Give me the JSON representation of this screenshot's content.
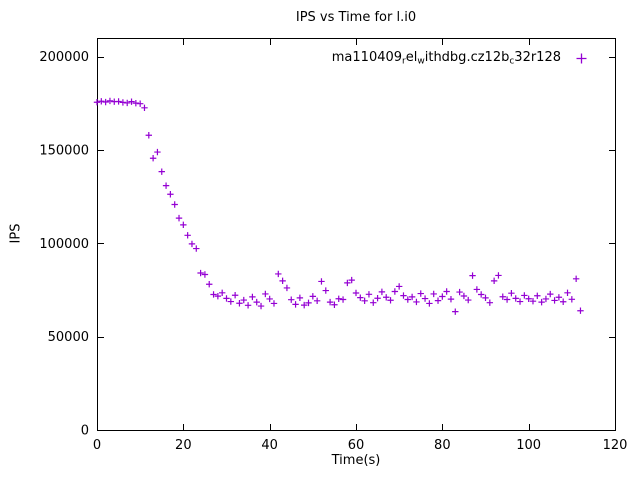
{
  "chart_data": {
    "type": "scatter",
    "title": "IPS vs Time for l.i0",
    "xlabel": "Time(s)",
    "ylabel": "IPS",
    "xlim": [
      0,
      120
    ],
    "ylim": [
      0,
      210000
    ],
    "xticks": [
      0,
      20,
      40,
      60,
      80,
      100,
      120
    ],
    "yticks": [
      0,
      50000,
      100000,
      150000,
      200000
    ],
    "grid": false,
    "legend_position": "top-right",
    "legend_label_plain": "ma110409_rel_withdbg.cz12b_c32r128",
    "legend_label_parts": [
      {
        "text": "ma110409",
        "sub": false
      },
      {
        "text": "r",
        "sub": true
      },
      {
        "text": "el",
        "sub": false
      },
      {
        "text": "w",
        "sub": true
      },
      {
        "text": "ithdbg.cz12b",
        "sub": false
      },
      {
        "text": "c",
        "sub": true
      },
      {
        "text": "32r128",
        "sub": false
      }
    ],
    "series": [
      {
        "name": "ma110409_rel_withdbg.cz12b_c32r128",
        "marker": "plus",
        "color": "#9400d3",
        "x": [
          0,
          1,
          2,
          3,
          4,
          5,
          6,
          7,
          8,
          9,
          10,
          11,
          12,
          13,
          14,
          15,
          16,
          17,
          18,
          19,
          20,
          21,
          22,
          23,
          24,
          25,
          26,
          27,
          28,
          29,
          30,
          31,
          32,
          33,
          34,
          35,
          36,
          37,
          38,
          39,
          40,
          41,
          42,
          43,
          44,
          45,
          46,
          47,
          48,
          49,
          50,
          51,
          52,
          53,
          54,
          55,
          56,
          57,
          58,
          59,
          60,
          61,
          62,
          63,
          64,
          65,
          66,
          67,
          68,
          69,
          70,
          71,
          72,
          73,
          74,
          75,
          76,
          77,
          78,
          79,
          80,
          81,
          82,
          83,
          84,
          85,
          86,
          87,
          88,
          89,
          90,
          91,
          92,
          93,
          94,
          95,
          96,
          97,
          98,
          99,
          100,
          101,
          102,
          103,
          104,
          105,
          106,
          107,
          108,
          109,
          110,
          111,
          112
        ],
        "y": [
          175600,
          176100,
          175700,
          176300,
          175900,
          176000,
          175500,
          175200,
          175900,
          175100,
          174800,
          172600,
          157900,
          145600,
          148900,
          138400,
          130900,
          126300,
          120800,
          113500,
          109900,
          104300,
          99700,
          97200,
          84100,
          83300,
          78100,
          72600,
          71700,
          73500,
          70500,
          68800,
          72200,
          67900,
          69600,
          66800,
          71300,
          68500,
          66400,
          72900,
          70200,
          67800,
          83600,
          79900,
          76100,
          69800,
          67300,
          70800,
          66900,
          68100,
          71600,
          69200,
          79600,
          74700,
          68500,
          67100,
          70300,
          69900,
          78800,
          80300,
          73400,
          70900,
          69200,
          72700,
          68200,
          70600,
          74000,
          71100,
          69500,
          74200,
          76900,
          72000,
          69900,
          71300,
          68600,
          73100,
          70400,
          67800,
          72900,
          69300,
          71500,
          74200,
          70100,
          63400,
          73900,
          71800,
          69600,
          82700,
          75300,
          72600,
          70800,
          68200,
          79900,
          82800,
          71400,
          69900,
          73300,
          70500,
          68800,
          72100,
          70300,
          69000,
          71900,
          68500,
          70200,
          72800,
          69400,
          71100,
          68700,
          73500,
          70000,
          81000,
          63900
        ]
      }
    ]
  }
}
